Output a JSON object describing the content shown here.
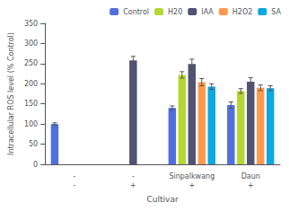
{
  "chart_data": {
    "type": "bar",
    "xlabel": "Cultivar",
    "ylabel": "Intracellular ROS level (% Control)",
    "categories": [
      "-\n-",
      "-\n+",
      "Sinpalkwang\n+",
      "Daun\n+"
    ],
    "series": [
      {
        "name": "Control",
        "values": [
          100,
          null,
          140,
          147
        ],
        "errors": [
          3,
          null,
          5,
          8
        ]
      },
      {
        "name": "H20",
        "values": [
          null,
          null,
          222,
          182
        ],
        "errors": [
          null,
          null,
          8,
          6
        ]
      },
      {
        "name": "IAA",
        "values": [
          null,
          258,
          249,
          205
        ],
        "errors": [
          null,
          10,
          12,
          10
        ]
      },
      {
        "name": "H2O2",
        "values": [
          null,
          null,
          204,
          190
        ],
        "errors": [
          null,
          null,
          9,
          7
        ]
      },
      {
        "name": "SA",
        "values": [
          null,
          null,
          193,
          189
        ],
        "errors": [
          null,
          null,
          7,
          6
        ]
      }
    ],
    "ylim": [
      0,
      350
    ],
    "yticks": [
      0,
      50,
      100,
      150,
      200,
      250,
      300,
      350
    ],
    "grid": false,
    "legend": "upper right"
  }
}
